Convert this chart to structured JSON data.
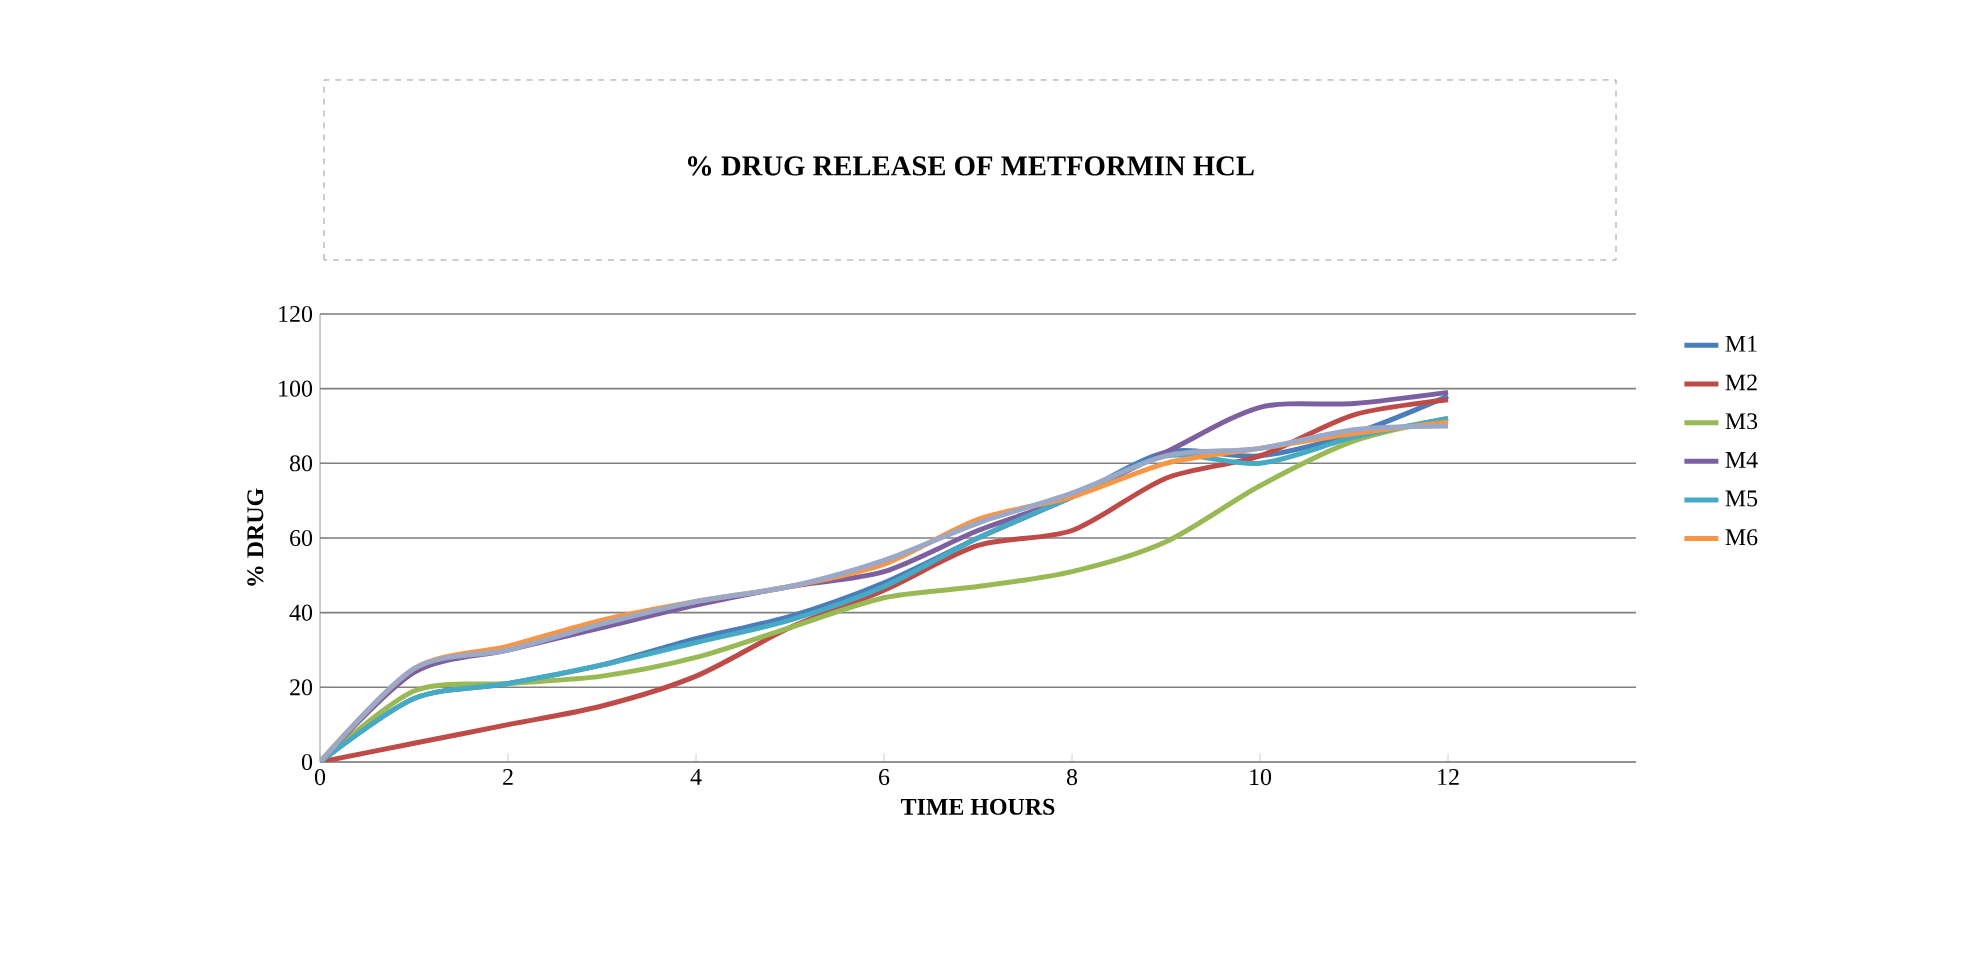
{
  "chart_data": {
    "type": "line",
    "title": "% DRUG RELEASE OF METFORMIN HCL",
    "xlabel": "TIME HOURS",
    "ylabel": "% DRUG",
    "x": [
      0,
      1,
      2,
      3,
      4,
      5,
      6,
      7,
      8,
      9,
      10,
      11,
      12
    ],
    "xlim": [
      0,
      14
    ],
    "xticks": [
      0,
      2,
      4,
      6,
      8,
      10,
      12
    ],
    "ylim": [
      0,
      120
    ],
    "yticks": [
      0,
      20,
      40,
      60,
      80,
      100,
      120
    ],
    "grid": "y",
    "legend": "right",
    "marker": "none",
    "line_style": "solid",
    "series": [
      {
        "name": "M1",
        "color": "#4a7ebb",
        "values": [
          0,
          17,
          21,
          26,
          33,
          39,
          48,
          60,
          71,
          83,
          82,
          88,
          98
        ]
      },
      {
        "name": "M2",
        "color": "#be4b48",
        "values": [
          0,
          5,
          10,
          15,
          23,
          36,
          46,
          58,
          62,
          76,
          82,
          93,
          97
        ]
      },
      {
        "name": "M3",
        "color": "#98b954",
        "values": [
          0,
          19,
          21,
          23,
          28,
          36,
          44,
          47,
          51,
          59,
          74,
          86,
          92
        ]
      },
      {
        "name": "M4",
        "color": "#7d60a0",
        "values": [
          0,
          24,
          30,
          36,
          42,
          47,
          51,
          62,
          71,
          83,
          95,
          96,
          99
        ]
      },
      {
        "name": "M5",
        "color": "#46aac5",
        "values": [
          0,
          17,
          21,
          26,
          32,
          38,
          47,
          60,
          71,
          82,
          80,
          87,
          92
        ]
      },
      {
        "name": "M6",
        "color": "#f79646",
        "values": [
          0,
          25,
          31,
          38,
          43,
          47,
          53,
          65,
          71,
          80,
          84,
          88,
          91
        ]
      },
      {
        "color": "#9aa9c8",
        "values": [
          0,
          25,
          30,
          37,
          43,
          47,
          54,
          64,
          72,
          82,
          84,
          89,
          90
        ]
      }
    ]
  }
}
